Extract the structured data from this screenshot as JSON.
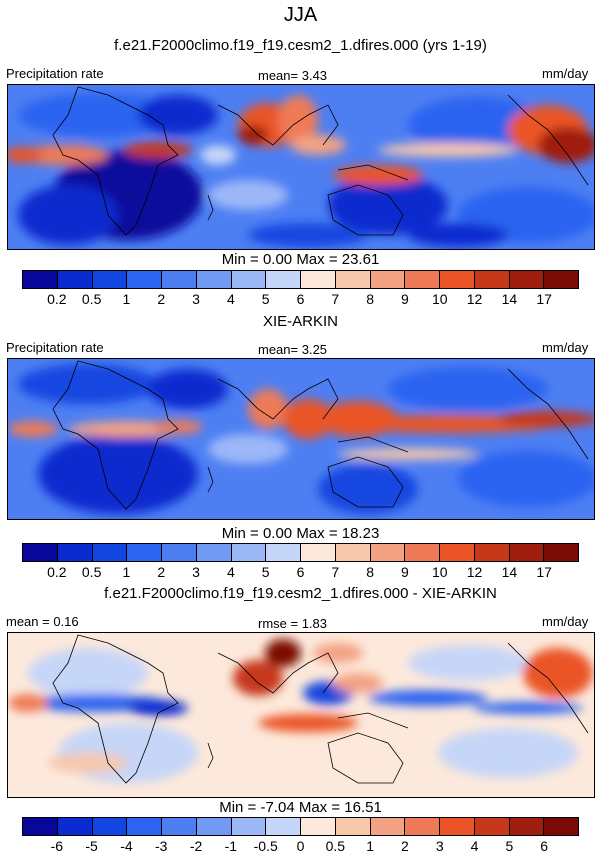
{
  "page": {
    "title": "JJA",
    "unit": "mm/day",
    "variable": "Precipitation rate"
  },
  "panels": [
    {
      "id": "model",
      "subtitle": "f.e21.F2000climo.f19_f19.cesm2_1.dfires.000 (yrs 1-19)",
      "left_label": "Precipitation rate",
      "center_label": "mean=   3.43",
      "right_label": "mm/day",
      "minmax": "Min =   0.00 Max =  23.61"
    },
    {
      "id": "obs",
      "subtitle": "XIE-ARKIN",
      "left_label": "Precipitation rate",
      "center_label": "mean=   3.25",
      "right_label": "mm/day",
      "minmax": "Min =   0.00 Max =  18.23"
    },
    {
      "id": "diff",
      "subtitle": "f.e21.F2000climo.f19_f19.cesm2_1.dfires.000 - XIE-ARKIN",
      "left_label": "mean =   0.16",
      "center_label": "rmse =   1.83",
      "right_label": "mm/day",
      "minmax": "Min =  -7.04 Max =  16.51"
    }
  ],
  "chart_data": [
    {
      "type": "heatmap",
      "title": "f.e21.F2000climo.f19_f19.cesm2_1.dfires.000 (yrs 1-19)",
      "variable": "Precipitation rate",
      "units": "mm/day",
      "mean": 3.43,
      "min": 0.0,
      "max": 23.61,
      "colorbar_levels": [
        "0.2",
        "0.5",
        "1",
        "2",
        "3",
        "4",
        "5",
        "6",
        "7",
        "8",
        "9",
        "10",
        "12",
        "14",
        "17"
      ],
      "colorbar_colors": [
        "#08079c",
        "#0a2bcf",
        "#1346e0",
        "#2c64f0",
        "#4d7ff3",
        "#7299f4",
        "#9db8f7",
        "#c6d6f8",
        "#fde9db",
        "#f7c7ac",
        "#f3a283",
        "#ef7a57",
        "#ea5426",
        "#c7381a",
        "#a01e10",
        "#7a0a05"
      ]
    },
    {
      "type": "heatmap",
      "title": "XIE-ARKIN",
      "variable": "Precipitation rate",
      "units": "mm/day",
      "mean": 3.25,
      "min": 0.0,
      "max": 18.23,
      "colorbar_levels": [
        "0.2",
        "0.5",
        "1",
        "2",
        "3",
        "4",
        "5",
        "6",
        "7",
        "8",
        "9",
        "10",
        "12",
        "14",
        "17"
      ],
      "colorbar_colors": [
        "#08079c",
        "#0a2bcf",
        "#1346e0",
        "#2c64f0",
        "#4d7ff3",
        "#7299f4",
        "#9db8f7",
        "#c6d6f8",
        "#fde9db",
        "#f7c7ac",
        "#f3a283",
        "#ef7a57",
        "#ea5426",
        "#c7381a",
        "#a01e10",
        "#7a0a05"
      ]
    },
    {
      "type": "heatmap",
      "title": "f.e21.F2000climo.f19_f19.cesm2_1.dfires.000 - XIE-ARKIN",
      "units": "mm/day",
      "mean": 0.16,
      "rmse": 1.83,
      "min": -7.04,
      "max": 16.51,
      "colorbar_levels": [
        "-6",
        "-5",
        "-4",
        "-3",
        "-2",
        "-1",
        "-0.5",
        "0",
        "0.5",
        "1",
        "2",
        "3",
        "4",
        "5",
        "6"
      ],
      "colorbar_colors": [
        "#08079c",
        "#0a2bcf",
        "#1346e0",
        "#2c64f0",
        "#4d7ff3",
        "#7299f4",
        "#9db8f7",
        "#c6d6f8",
        "#fde9db",
        "#f7c7ac",
        "#f3a283",
        "#ef7a57",
        "#ea5426",
        "#c7381a",
        "#a01e10",
        "#7a0a05"
      ]
    }
  ]
}
